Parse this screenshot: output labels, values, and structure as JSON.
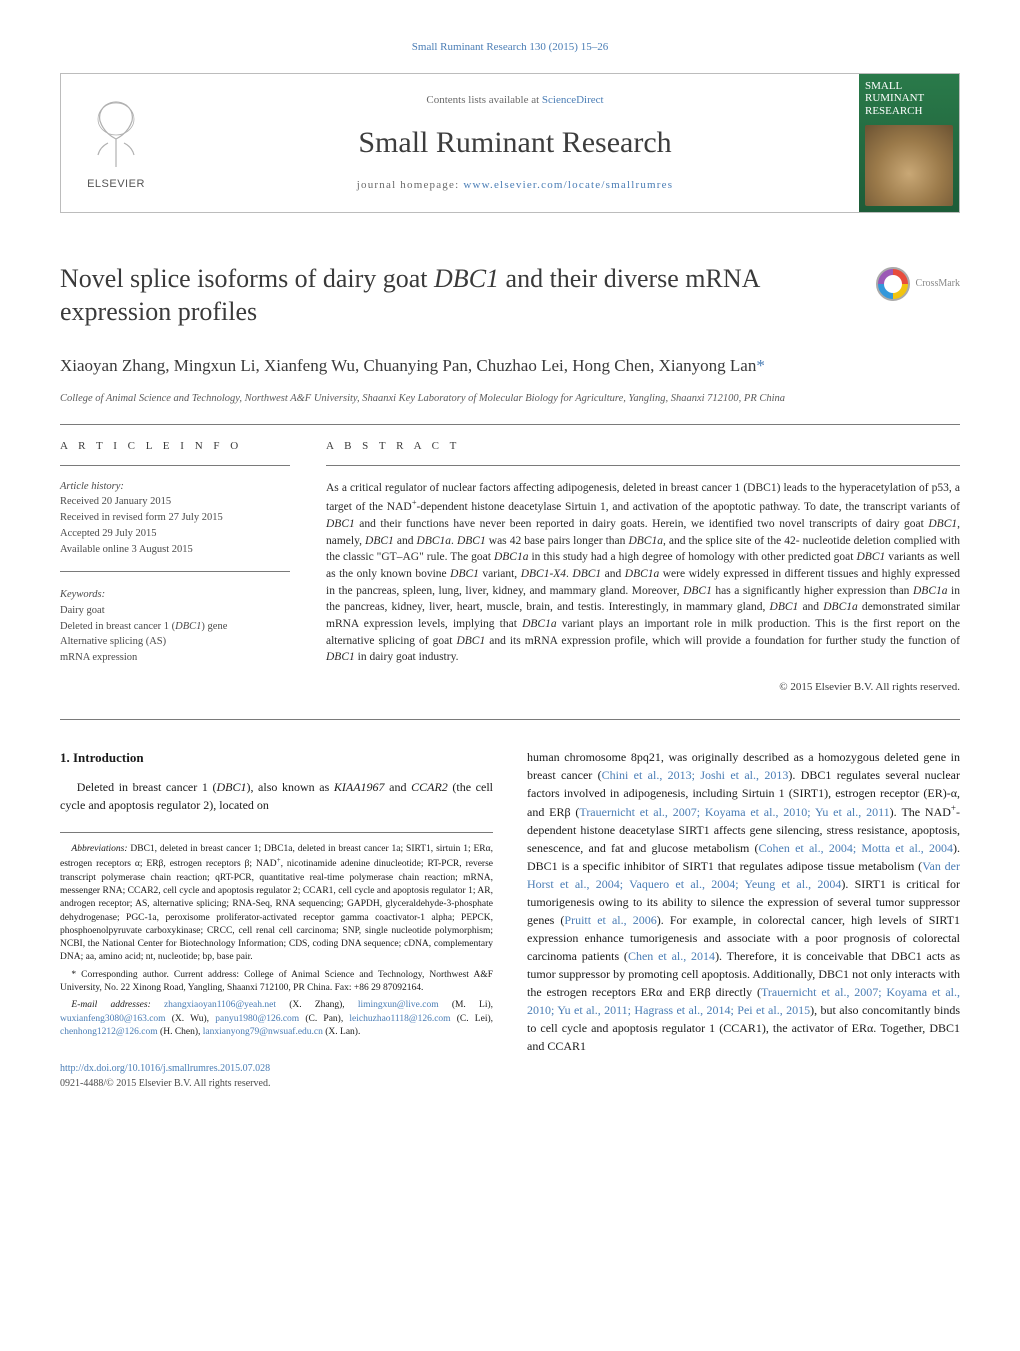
{
  "colors": {
    "link": "#4a7db5",
    "text": "#1a1a1a",
    "muted": "#6a6a6a",
    "rule": "#7a7a7a",
    "cover_grad_top": "#2a7a4a",
    "cover_grad_bottom": "#1d5c38"
  },
  "top_line": "Small Ruminant Research 130 (2015) 15–26",
  "header": {
    "contents_prefix": "Contents lists available at ",
    "contents_link": "ScienceDirect",
    "journal": "Small Ruminant Research",
    "homepage_prefix": "journal homepage: ",
    "homepage_url": "www.elsevier.com/locate/smallrumres",
    "elsevier": "ELSEVIER",
    "cover_title": "SMALL RUMINANT RESEARCH"
  },
  "article": {
    "title_prefix": "Novel splice isoforms of dairy goat ",
    "title_gene": "DBC1",
    "title_suffix": " and their diverse mRNA expression profiles",
    "crossmark": "CrossMark"
  },
  "authors_line": "Xiaoyan Zhang, Mingxun Li, Xianfeng Wu, Chuanying Pan, Chuzhao Lei, Hong Chen, Xianyong Lan",
  "corr_mark": "*",
  "affiliation": "College of Animal Science and Technology, Northwest A&F University, Shaanxi Key Laboratory of Molecular Biology for Agriculture, Yangling, Shaanxi 712100, PR China",
  "info": {
    "label": "A R T I C L E   I N F O",
    "history_label": "Article history:",
    "received": "Received 20 January 2015",
    "revised": "Received in revised form 27 July 2015",
    "accepted": "Accepted 29 July 2015",
    "online": "Available online 3 August 2015",
    "keywords_label": "Keywords:",
    "keywords": [
      "Dairy goat",
      "Deleted in breast cancer 1 (<em>DBC1</em>) gene",
      "Alternative splicing (AS)",
      "mRNA expression"
    ]
  },
  "abstract": {
    "label": "A B S T R A C T",
    "body": "As a critical regulator of nuclear factors affecting adipogenesis, deleted in breast cancer 1 (DBC1) leads to the hyperacetylation of p53, a target of the NAD<sup>+</sup>-dependent histone deacetylase Sirtuin 1, and activation of the apoptotic pathway. To date, the transcript variants of <em>DBC1</em> and their functions have never been reported in dairy goats. Herein, we identified two novel transcripts of dairy goat <em>DBC1</em>, namely, <em>DBC1</em> and <em>DBC1a</em>. <em>DBC1</em> was 42 base pairs longer than <em>DBC1a</em>, and the splice site of the 42- nucleotide deletion complied with the classic \"GT–AG\" rule. The goat <em>DBC1a</em> in this study had a high degree of homology with other predicted goat <em>DBC1</em> variants as well as the only known bovine <em>DBC1</em> variant, <em>DBC1-X4</em>. <em>DBC1</em> and <em>DBC1a</em> were widely expressed in different tissues and highly expressed in the pancreas, spleen, lung, liver, kidney, and mammary gland. Moreover, <em>DBC1</em> has a significantly higher expression than <em>DBC1a</em> in the pancreas, kidney, liver, heart, muscle, brain, and testis. Interestingly, in mammary gland, <em>DBC1</em> and <em>DBC1a</em> demonstrated similar mRNA expression levels, implying that <em>DBC1a</em> variant plays an important role in milk production. This is the first report on the alternative splicing of goat <em>DBC1</em> and its mRNA expression profile, which will provide a foundation for further study the function of <em>DBC1</em> in dairy goat industry.",
    "copyright": "© 2015 Elsevier B.V. All rights reserved."
  },
  "intro": {
    "heading": "1.  Introduction",
    "left_para": "Deleted in breast cancer 1 (<em>DBC1</em>), also known as <em>KIAA1967</em> and <em>CCAR2</em> (the cell cycle and apoptosis regulator 2), located on",
    "right_para": "human chromosome 8pq21, was originally described as a homozygous deleted gene in breast cancer (<a class=\"link\" href=\"#\">Chini et al., 2013; Joshi et al., 2013</a>). DBC1 regulates several nuclear factors involved in adipogenesis, including Sirtuin 1 (SIRT1), estrogen receptor (ER)-α, and ERβ (<a class=\"link\" href=\"#\">Trauernicht et al., 2007; Koyama et al., 2010; Yu et al., 2011</a>). The NAD<sup>+</sup>-dependent histone deacetylase SIRT1 affects gene silencing, stress resistance, apoptosis, senescence, and fat and glucose metabolism (<a class=\"link\" href=\"#\">Cohen et al., 2004; Motta et al., 2004</a>). DBC1 is a specific inhibitor of SIRT1 that regulates adipose tissue metabolism (<a class=\"link\" href=\"#\">Van der Horst et al., 2004; Vaquero et al., 2004; Yeung et al., 2004</a>). SIRT1 is critical for tumorigenesis owing to its ability to silence the expression of several tumor suppressor genes (<a class=\"link\" href=\"#\">Pruitt et al., 2006</a>). For example, in colorectal cancer, high levels of SIRT1 expression enhance tumorigenesis and associate with a poor prognosis of colorectal carcinoma patients (<a class=\"link\" href=\"#\">Chen et al., 2014</a>). Therefore, it is conceivable that DBC1 acts as tumor suppressor by promoting cell apoptosis. Additionally, DBC1 not only interacts with the estrogen receptors ERα and ERβ directly (<a class=\"link\" href=\"#\">Trauernicht et al., 2007; Koyama et al., 2010; Yu et al., 2011; Hagrass et al., 2014; Pei et al., 2015</a>), but also concomitantly binds to cell cycle and apoptosis regulator 1 (CCAR1), the activator of ERα. Together, DBC1 and CCAR1"
  },
  "footnotes": {
    "abbrev_label": "Abbreviations:",
    "abbrev_body": " DBC1, deleted in breast cancer 1; DBC1a, deleted in breast cancer 1a; SIRT1, sirtuin 1; ERα, estrogen receptors α; ERβ, estrogen receptors β; NAD<sup>+</sup>, nicotinamide adenine dinucleotide; RT-PCR, reverse transcript polymerase chain reaction; qRT-PCR, quantitative real-time polymerase chain reaction; mRNA, messenger RNA; CCAR2, cell cycle and apoptosis regulator 2; CCAR1, cell cycle and apoptosis regulator 1; AR, androgen receptor; AS, alternative splicing; RNA-Seq, RNA sequencing; GAPDH, glyceraldehyde-3-phosphate dehydrogenase; PGC-1a, peroxisome proliferator-activated receptor gamma coactivator-1 alpha; PEPCK, phosphoenolpyruvate carboxykinase; CRCC, cell renal cell carcinoma; SNP, single nucleotide polymorphism; NCBI, the National Center for Biotechnology Information; CDS, coding DNA sequence; cDNA, complementary DNA; aa, amino acid; nt, nucleotide; bp, base pair.",
    "corr_label": "* Corresponding author. Current address: College of Animal Science and Technology, Northwest A&F University, No. 22 Xinong Road, Yangling, Shaanxi 712100, PR China. Fax: +86 29 87092164.",
    "email_label": "E-mail addresses:",
    "emails": " <a class=\"link\" href=\"#\">zhangxiaoyan1106@yeah.net</a> (X. Zhang), <a class=\"link\" href=\"#\">limingxun@live.com</a> (M. Li), <a class=\"link\" href=\"#\">wuxianfeng3080@163.com</a> (X. Wu), <a class=\"link\" href=\"#\">panyu1980@126.com</a> (C. Pan), <a class=\"link\" href=\"#\">leichuzhao1118@126.com</a> (C. Lei), <a class=\"link\" href=\"#\">chenhong1212@126.com</a> (H. Chen), <a class=\"link\" href=\"#\">lanxianyong79@nwsuaf.edu.cn</a> (X. Lan)."
  },
  "doi": {
    "url": "http://dx.doi.org/10.1016/j.smallrumres.2015.07.028",
    "issn_line": "0921-4488/© 2015 Elsevier B.V. All rights reserved."
  }
}
